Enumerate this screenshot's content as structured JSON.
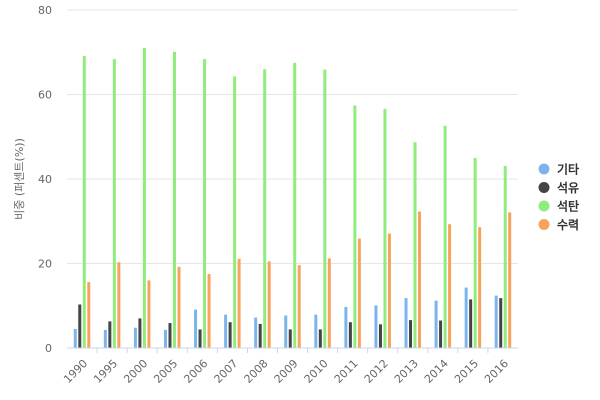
{
  "chart_data": {
    "type": "bar",
    "ylabel": "비중 (퍼센트(%))",
    "ylim": [
      0,
      80
    ],
    "yticks": [
      0,
      20,
      40,
      60,
      80
    ],
    "grid": true,
    "legend_position": "right",
    "categories": [
      "1990",
      "1995",
      "2000",
      "2005",
      "2006",
      "2007",
      "2008",
      "2009",
      "2010",
      "2011",
      "2012",
      "2013",
      "2014",
      "2015",
      "2016"
    ],
    "series": [
      {
        "name": "기타",
        "color": "#7cb5ec",
        "values": [
          4.5,
          4.3,
          4.8,
          4.3,
          9.1,
          7.9,
          7.2,
          7.7,
          7.9,
          9.7,
          10.1,
          11.8,
          11.2,
          14.3,
          12.4
        ]
      },
      {
        "name": "석유",
        "color": "#434348",
        "values": [
          10.3,
          6.3,
          7.0,
          5.9,
          4.4,
          6.1,
          5.7,
          4.4,
          4.4,
          6.1,
          5.6,
          6.6,
          6.5,
          11.5,
          11.8
        ]
      },
      {
        "name": "석탄",
        "color": "#90ed7d",
        "values": [
          69.1,
          68.4,
          71.0,
          70.1,
          68.4,
          64.3,
          66.0,
          67.5,
          65.9,
          57.4,
          56.6,
          48.7,
          52.6,
          45.0,
          43.1
        ]
      },
      {
        "name": "수력",
        "color": "#f7a35c",
        "values": [
          15.6,
          20.3,
          16.0,
          19.2,
          17.5,
          21.1,
          20.5,
          19.6,
          21.2,
          25.9,
          27.1,
          32.3,
          29.3,
          28.6,
          32.1
        ]
      }
    ]
  }
}
